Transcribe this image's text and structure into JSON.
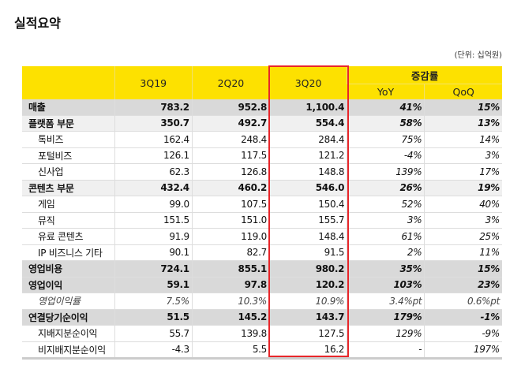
{
  "title": "실적요약",
  "unit": "(단위: 십억원)",
  "header": {
    "periods": [
      "3Q19",
      "2Q20",
      "3Q20"
    ],
    "change": "증감률",
    "yoy": "YoY",
    "qoq": "QoQ"
  },
  "rows": [
    {
      "label": "매출",
      "v": [
        "783.2",
        "952.8",
        "1,100.4",
        "41%",
        "15%"
      ],
      "type": "major"
    },
    {
      "label": "플랫폼 부문",
      "v": [
        "350.7",
        "492.7",
        "554.4",
        "58%",
        "13%"
      ],
      "type": "seg"
    },
    {
      "label": "톡비즈",
      "v": [
        "162.4",
        "248.4",
        "284.4",
        "75%",
        "14%"
      ],
      "type": "sub"
    },
    {
      "label": "포털비즈",
      "v": [
        "126.1",
        "117.5",
        "121.2",
        "-4%",
        "3%"
      ],
      "type": "sub"
    },
    {
      "label": "신사업",
      "v": [
        "62.3",
        "126.8",
        "148.8",
        "139%",
        "17%"
      ],
      "type": "sub"
    },
    {
      "label": "콘텐츠 부문",
      "v": [
        "432.4",
        "460.2",
        "546.0",
        "26%",
        "19%"
      ],
      "type": "seg"
    },
    {
      "label": "게임",
      "v": [
        "99.0",
        "107.5",
        "150.4",
        "52%",
        "40%"
      ],
      "type": "sub"
    },
    {
      "label": "뮤직",
      "v": [
        "151.5",
        "151.0",
        "155.7",
        "3%",
        "3%"
      ],
      "type": "sub"
    },
    {
      "label": "유료 콘텐츠",
      "v": [
        "91.9",
        "119.0",
        "148.4",
        "61%",
        "25%"
      ],
      "type": "sub"
    },
    {
      "label": "IP 비즈니스 기타",
      "v": [
        "90.1",
        "82.7",
        "91.5",
        "2%",
        "11%"
      ],
      "type": "sub"
    },
    {
      "label": "영업비용",
      "v": [
        "724.1",
        "855.1",
        "980.2",
        "35%",
        "15%"
      ],
      "type": "major"
    },
    {
      "label": "영업이익",
      "v": [
        "59.1",
        "97.8",
        "120.2",
        "103%",
        "23%"
      ],
      "type": "major"
    },
    {
      "label": "영업이익률",
      "v": [
        "7.5%",
        "10.3%",
        "10.9%",
        "3.4%pt",
        "0.6%pt"
      ],
      "type": "rate"
    },
    {
      "label": "연결당기순이익",
      "v": [
        "51.5",
        "145.2",
        "143.7",
        "179%",
        "-1%"
      ],
      "type": "major"
    },
    {
      "label": "지배지분순이익",
      "v": [
        "55.7",
        "139.8",
        "127.5",
        "129%",
        "-9%"
      ],
      "type": "sub"
    },
    {
      "label": "비지배지분순이익",
      "v": [
        "-4.3",
        "5.5",
        "16.2",
        "-",
        "197%"
      ],
      "type": "sub"
    }
  ],
  "colors": {
    "header": "#fde100",
    "highlight": "#e8262a",
    "major": "#d9d9d9",
    "segment": "#f0f0f0"
  }
}
